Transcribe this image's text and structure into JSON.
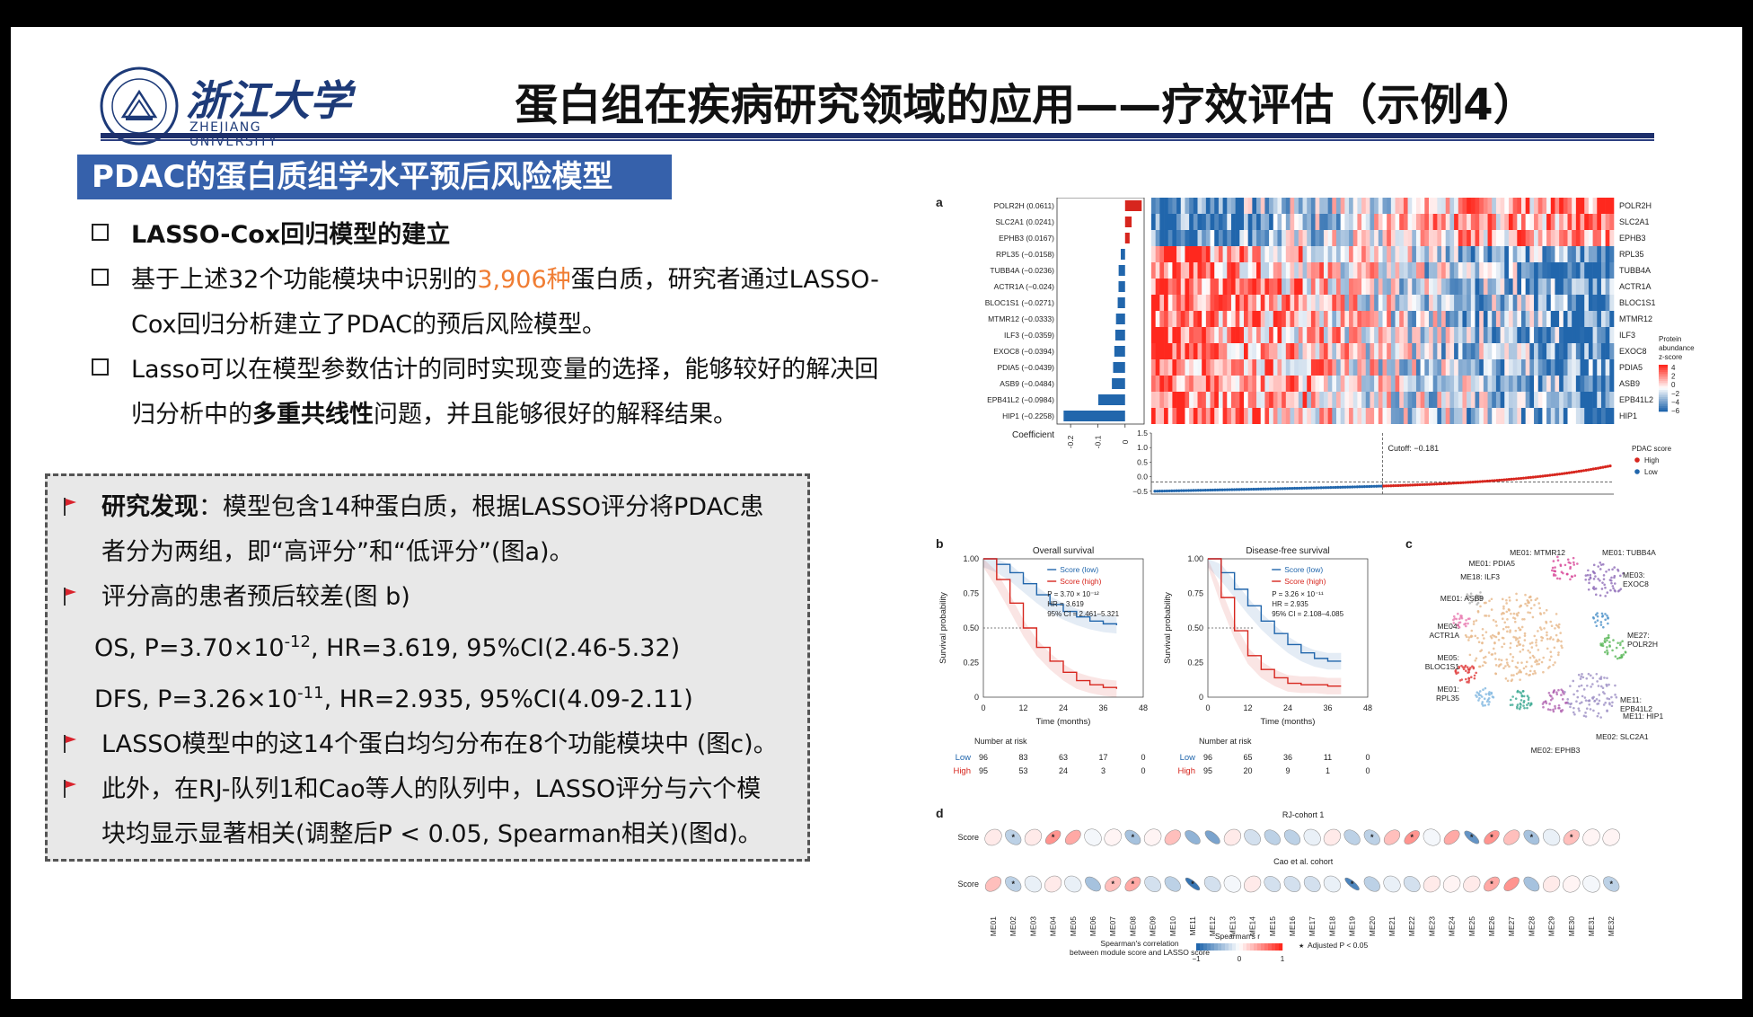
{
  "logo": {
    "name_cn": "浙江大学",
    "name_en": "ZHEJIANG UNIVERSITY",
    "seal_text": "浙江大学 ZHEJIANG UNIVERSITY"
  },
  "title": "蛋白组在疾病研究领域的应用——疗效评估（示例4）",
  "section_header": "PDAC的蛋白质组学水平预后风险模型",
  "bullets": [
    {
      "text": "LASSO-Cox回归模型的建立"
    },
    {
      "pre": "基于上述32个功能模块中识别的",
      "highlight": "3,906种",
      "post": "蛋白质，研究者通过LASSO-",
      "line2": "Cox回归分析建立了PDAC的预后风险模型。"
    },
    {
      "pre": "Lasso可以在模型参数估计的同时实现变量的选择，能够较好的解决回",
      "line2_pre": "归分析中的",
      "line2_bold": "多重共线性",
      "line2_post": "问题，并且能够很好的解释结果。"
    }
  ],
  "findings": {
    "f1_bold": "研究发现",
    "f1_text": "：模型包含14种蛋白质，根据LASSO评分将PDAC患",
    "f1_line2": "者分为两组，即“高评分”和“低评分”(图a)。",
    "f2": "评分高的患者预后较差(图 b)",
    "os_pre": "OS, P=3.70×10",
    "os_exp": "-12",
    "os_post": ", HR=3.619, 95%CI(2.46-5.32)",
    "dfs_pre": "DFS, P=3.26×10",
    "dfs_exp": "-11",
    "dfs_post": ", HR=2.935, 95%CI(4.09-2.11)",
    "f3": "LASSO模型中的这14个蛋白均匀分布在8个功能模块中 (图c)。",
    "f4": "此外，在RJ-队列1和Cao等人的队列中，LASSO评分与六个模",
    "f4_line2": "块均显示显著相关(调整后P < 0.05, Spearman相关)(图d)。"
  },
  "colors": {
    "header_bg": "#3661ab",
    "accent_orange": "#f07d33",
    "rule": "#1d2f6b",
    "flag": "#d9232d",
    "high": "#d7261e",
    "low": "#2166ac"
  },
  "chart_data": [
    {
      "panel": "a",
      "type": "bar",
      "orientation": "horizontal",
      "categories": [
        "POLR2H (0.0611)",
        "SLC2A1 (0.0241)",
        "EPHB3 (0.0167)",
        "RPL35 (−0.0158)",
        "TUBB4A (−0.0236)",
        "ACTR1A (−0.024)",
        "BLOC1S1 (−0.0271)",
        "MTMR12 (−0.0333)",
        "ILF3 (−0.0359)",
        "EXOC8 (−0.0394)",
        "PDIA5 (−0.0439)",
        "ASB9 (−0.0484)",
        "EPB41L2 (−0.0984)",
        "HIP1 (−0.2258)"
      ],
      "values": [
        0.0611,
        0.0241,
        0.0167,
        -0.0158,
        -0.0236,
        -0.024,
        -0.0271,
        -0.0333,
        -0.0359,
        -0.0394,
        -0.0439,
        -0.0484,
        -0.0984,
        -0.2258
      ],
      "xlabel": "Coefficient",
      "xticks": [
        "-0.2",
        "-0.1",
        "0"
      ],
      "xlim": [
        -0.25,
        0.07
      ],
      "heatmap_genes": [
        "POLR2H",
        "SLC2A1",
        "EPHB3",
        "RPL35",
        "TUBB4A",
        "ACTR1A",
        "BLOC1S1",
        "MTMR12",
        "ILF3",
        "EXOC8",
        "PDIA5",
        "ASB9",
        "EPB41L2",
        "HIP1"
      ],
      "colorbar_title": "Protein abundance z-score",
      "colorbar_ticks": [
        "4",
        "2",
        "0",
        "−2",
        "−4",
        "−6"
      ],
      "score_plot": {
        "yticks": [
          "1.5",
          "1.0",
          "0.5",
          "0.0",
          "−0.5"
        ],
        "ylim": [
          -0.6,
          1.5
        ],
        "cutoff": -0.181,
        "cutoff_label": "Cutoff: −0.181",
        "legend_title": "PDAC score",
        "legend": [
          "High",
          "Low"
        ]
      }
    },
    {
      "panel": "b",
      "type": "line",
      "title": "Overall survival",
      "xlabel": "Time (months)",
      "ylabel": "Survival probability",
      "xticks": [
        0,
        12,
        24,
        36,
        48
      ],
      "yticks": [
        "0",
        "0.25",
        "0.50",
        "0.75",
        "1.00"
      ],
      "xlim": [
        0,
        48
      ],
      "ylim": [
        0,
        1
      ],
      "series": [
        {
          "name": "Score (low)",
          "x": [
            0,
            4,
            8,
            12,
            16,
            20,
            24,
            28,
            32,
            36,
            40
          ],
          "y": [
            1.0,
            0.96,
            0.9,
            0.82,
            0.74,
            0.67,
            0.62,
            0.58,
            0.55,
            0.53,
            0.52
          ]
        },
        {
          "name": "Score (high)",
          "x": [
            0,
            4,
            8,
            12,
            16,
            20,
            24,
            28,
            32,
            36,
            40
          ],
          "y": [
            1.0,
            0.85,
            0.68,
            0.5,
            0.36,
            0.26,
            0.18,
            0.12,
            0.09,
            0.07,
            0.06
          ]
        }
      ],
      "stats": [
        "P = 3.70 × 10⁻¹²",
        "HR = 3.619",
        "95% CI = 2.461–5.321"
      ],
      "risk_table": {
        "title": "Number at risk",
        "rows": [
          {
            "name": "Low",
            "values": [
              "96",
              "83",
              "63",
              "17",
              "0"
            ]
          },
          {
            "name": "High",
            "values": [
              "95",
              "53",
              "24",
              "3",
              "0"
            ]
          }
        ]
      }
    },
    {
      "panel": "b",
      "type": "line",
      "title": "Disease-free survival",
      "xlabel": "Time (months)",
      "ylabel": "Survival probability",
      "xticks": [
        0,
        12,
        24,
        36,
        48
      ],
      "yticks": [
        "0",
        "0.25",
        "0.50",
        "0.75",
        "1.00"
      ],
      "xlim": [
        0,
        48
      ],
      "ylim": [
        0,
        1
      ],
      "series": [
        {
          "name": "Score (low)",
          "x": [
            0,
            4,
            8,
            12,
            16,
            20,
            24,
            28,
            32,
            36,
            40
          ],
          "y": [
            1.0,
            0.9,
            0.78,
            0.66,
            0.55,
            0.46,
            0.38,
            0.32,
            0.28,
            0.26,
            0.26
          ]
        },
        {
          "name": "Score (high)",
          "x": [
            0,
            4,
            8,
            12,
            16,
            20,
            24,
            28,
            32,
            36,
            40
          ],
          "y": [
            1.0,
            0.72,
            0.48,
            0.3,
            0.2,
            0.14,
            0.1,
            0.09,
            0.09,
            0.08,
            0.08
          ]
        }
      ],
      "stats": [
        "P = 3.26 × 10⁻¹¹",
        "HR = 2.935",
        "95% CI = 2.108–4.085"
      ],
      "risk_table": {
        "title": "Number at risk",
        "rows": [
          {
            "name": "Low",
            "values": [
              "96",
              "65",
              "36",
              "11",
              "0"
            ]
          },
          {
            "name": "High",
            "values": [
              "95",
              "20",
              "9",
              "1",
              "0"
            ]
          }
        ]
      }
    },
    {
      "panel": "c",
      "type": "scatter",
      "labels": [
        "ME01: MTMR12",
        "ME01: TUBB4A",
        "ME01: PDIA5",
        "ME18: ILF3",
        "ME03: EXOC8",
        "ME01: ASB9",
        "ME04: ACTR1A",
        "ME05: BLOC1S1",
        "ME01: RPL35",
        "ME27: POLR2H",
        "ME11: EPB41L2",
        "ME11: HIP1",
        "ME02: SLC2A1",
        "ME02: EPHB3"
      ]
    },
    {
      "panel": "d",
      "type": "heatmap",
      "modules": [
        "ME01",
        "ME02",
        "ME03",
        "ME04",
        "ME05",
        "ME06",
        "ME07",
        "ME08",
        "ME09",
        "ME10",
        "ME11",
        "ME12",
        "ME13",
        "ME14",
        "ME15",
        "ME16",
        "ME17",
        "ME18",
        "ME19",
        "ME20",
        "ME21",
        "ME22",
        "ME23",
        "ME24",
        "ME25",
        "ME26",
        "ME27",
        "ME28",
        "ME29",
        "ME30",
        "ME31",
        "ME32"
      ],
      "rows": [
        {
          "cohort": "RJ-cohort 1",
          "label": "Score",
          "r": [
            0.1,
            -0.3,
            0.1,
            0.5,
            0.4,
            -0.05,
            0.05,
            -0.4,
            0.05,
            0.3,
            -0.5,
            -0.6,
            0.1,
            -0.2,
            -0.3,
            -0.3,
            -0.1,
            0.1,
            -0.3,
            -0.3,
            0.3,
            0.5,
            -0.05,
            0.4,
            -0.7,
            0.5,
            0.3,
            -0.4,
            -0.1,
            0.3,
            0.05,
            0.05
          ],
          "sig": [
            0,
            1,
            0,
            1,
            0,
            0,
            0,
            1,
            0,
            0,
            0,
            0,
            0,
            0,
            0,
            0,
            0,
            0,
            0,
            1,
            0,
            1,
            0,
            0,
            1,
            1,
            0,
            1,
            0,
            1,
            0,
            0
          ]
        },
        {
          "cohort": "Cao et al. cohort",
          "label": "Score",
          "r": [
            0.3,
            -0.3,
            -0.1,
            0.1,
            -0.1,
            -0.4,
            0.3,
            0.4,
            -0.2,
            -0.3,
            -0.9,
            -0.2,
            -0.05,
            0.1,
            -0.2,
            -0.2,
            -0.2,
            -0.1,
            -0.8,
            -0.3,
            -0.1,
            -0.2,
            0.1,
            0.05,
            0.1,
            0.4,
            0.5,
            -0.4,
            0.1,
            0.05,
            -0.05,
            -0.3
          ],
          "sig": [
            0,
            1,
            0,
            0,
            0,
            0,
            1,
            1,
            0,
            0,
            1,
            0,
            0,
            0,
            0,
            0,
            0,
            0,
            1,
            0,
            0,
            0,
            0,
            0,
            0,
            1,
            0,
            0,
            0,
            0,
            0,
            1
          ]
        }
      ],
      "legend_title": "Spearman's correlation between module score and LASSO score",
      "colorbar_title": "Spearman's r",
      "colorbar_ticks": [
        "−1",
        "0",
        "1"
      ],
      "sig_note": "Adjusted P < 0.05"
    }
  ]
}
